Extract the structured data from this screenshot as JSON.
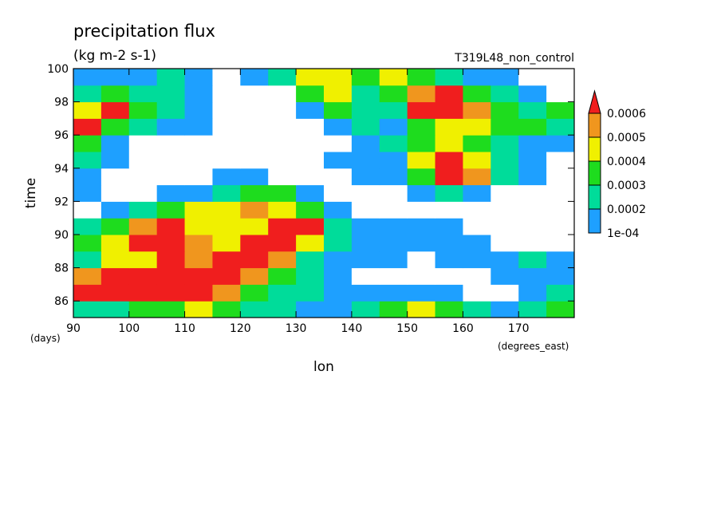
{
  "chart_data": {
    "type": "contour",
    "title": "precipitation flux",
    "subtitle": "(kg m-2 s-1)",
    "run_label": "T319L48_non_control",
    "x_label": "lon",
    "y_label": "time",
    "x_unit": "(degrees_east)",
    "y_unit": "(days)",
    "xlim": [
      90,
      180
    ],
    "ylim": [
      85,
      100
    ],
    "xticks": [
      90,
      100,
      110,
      120,
      130,
      140,
      150,
      160,
      170
    ],
    "yticks": [
      86,
      88,
      90,
      92,
      94,
      96,
      98,
      100
    ],
    "levels": [
      {
        "value": 0.0001,
        "label": "1e-04"
      },
      0.0002,
      0.0003,
      0.0004,
      0.0005,
      0.0006
    ],
    "colors": [
      "#1ea0ff",
      "#00dc9a",
      "#1edc1e",
      "#f0f000",
      "#f0961e",
      "#f01e1e"
    ],
    "x": [
      92.5,
      97.5,
      102.5,
      107.5,
      112.5,
      117.5,
      122.5,
      127.5,
      132.5,
      137.5,
      142.5,
      147.5,
      152.5,
      157.5,
      162.5,
      167.5,
      172.5,
      177.5
    ],
    "y": [
      85.5,
      86.5,
      87.5,
      88.5,
      89.5,
      90.5,
      91.5,
      92.5,
      93.5,
      94.5,
      95.5,
      96.5,
      97.5,
      98.5,
      99.5
    ],
    "z": [
      [
        0.00025,
        0.00025,
        0.00035,
        0.00035,
        0.00045,
        0.00035,
        0.00025,
        0.00025,
        0.00015,
        0.00015,
        0.00025,
        0.00035,
        0.00045,
        0.00035,
        0.00025,
        0.00015,
        0.00025,
        0.00035
      ],
      [
        0.0007,
        0.0007,
        0.0007,
        0.0007,
        0.0007,
        0.00055,
        0.00035,
        0.00025,
        0.00025,
        0.00015,
        0.00015,
        0.00015,
        0.00015,
        0.00015,
        5e-05,
        5e-05,
        0.00015,
        0.00025
      ],
      [
        0.00055,
        0.0007,
        0.0007,
        0.0007,
        0.0007,
        0.0007,
        0.00055,
        0.00035,
        0.00025,
        0.00015,
        5e-05,
        5e-05,
        5e-05,
        5e-05,
        5e-05,
        0.00015,
        0.00015,
        0.00015
      ],
      [
        0.00025,
        0.00045,
        0.00045,
        0.0007,
        0.00055,
        0.0007,
        0.0007,
        0.00055,
        0.00025,
        0.00015,
        0.00015,
        0.00015,
        5e-05,
        0.00015,
        0.00015,
        0.00015,
        0.00025,
        0.00015
      ],
      [
        0.00035,
        0.00045,
        0.0007,
        0.0007,
        0.00055,
        0.00045,
        0.0007,
        0.0007,
        0.00045,
        0.00025,
        0.00015,
        0.00015,
        0.00015,
        0.00015,
        0.00015,
        5e-05,
        5e-05,
        5e-05
      ],
      [
        0.00025,
        0.00035,
        0.00055,
        0.0007,
        0.00045,
        0.00045,
        0.00045,
        0.0007,
        0.0007,
        0.00025,
        0.00015,
        0.00015,
        0.00015,
        0.00015,
        5e-05,
        5e-05,
        5e-05,
        5e-05
      ],
      [
        5e-05,
        0.00015,
        0.00025,
        0.00035,
        0.00045,
        0.00045,
        0.00055,
        0.00045,
        0.00035,
        0.00015,
        5e-05,
        5e-05,
        5e-05,
        5e-05,
        5e-05,
        5e-05,
        5e-05,
        5e-05
      ],
      [
        0.00015,
        5e-05,
        5e-05,
        0.00015,
        0.00015,
        0.00025,
        0.00035,
        0.00035,
        0.00015,
        5e-05,
        5e-05,
        5e-05,
        0.00015,
        0.00025,
        0.00015,
        5e-05,
        5e-05,
        5e-05
      ],
      [
        0.00015,
        5e-05,
        5e-05,
        5e-05,
        5e-05,
        0.00015,
        0.00015,
        5e-05,
        5e-05,
        5e-05,
        0.00015,
        0.00015,
        0.00035,
        0.0007,
        0.00055,
        0.00025,
        0.00015,
        5e-05
      ],
      [
        0.00025,
        0.00015,
        5e-05,
        5e-05,
        5e-05,
        5e-05,
        5e-05,
        5e-05,
        5e-05,
        0.00015,
        0.00015,
        0.00015,
        0.00045,
        0.0007,
        0.00045,
        0.00025,
        0.00015,
        5e-05
      ],
      [
        0.00035,
        0.00015,
        5e-05,
        5e-05,
        5e-05,
        5e-05,
        5e-05,
        5e-05,
        5e-05,
        5e-05,
        0.00015,
        0.00025,
        0.00035,
        0.00045,
        0.00035,
        0.00025,
        0.00015,
        0.00015
      ],
      [
        0.0007,
        0.00035,
        0.00025,
        0.00015,
        0.00015,
        5e-05,
        5e-05,
        5e-05,
        5e-05,
        0.00015,
        0.00025,
        0.00015,
        0.00035,
        0.00045,
        0.00045,
        0.00035,
        0.00035,
        0.00025
      ],
      [
        0.00045,
        0.0007,
        0.00035,
        0.00025,
        0.00015,
        5e-05,
        5e-05,
        5e-05,
        0.00015,
        0.00035,
        0.00025,
        0.00025,
        0.0007,
        0.0007,
        0.00055,
        0.00035,
        0.00025,
        0.00035
      ],
      [
        0.00025,
        0.00035,
        0.00025,
        0.00025,
        0.00015,
        5e-05,
        5e-05,
        5e-05,
        0.00035,
        0.00045,
        0.00025,
        0.00035,
        0.00055,
        0.0007,
        0.00035,
        0.00025,
        0.00015,
        5e-05
      ],
      [
        0.00015,
        0.00015,
        0.00015,
        0.00025,
        0.00015,
        5e-05,
        0.00015,
        0.00025,
        0.00045,
        0.00045,
        0.00035,
        0.00045,
        0.00035,
        0.00025,
        0.00015,
        0.00015,
        5e-05,
        5e-05
      ]
    ]
  }
}
